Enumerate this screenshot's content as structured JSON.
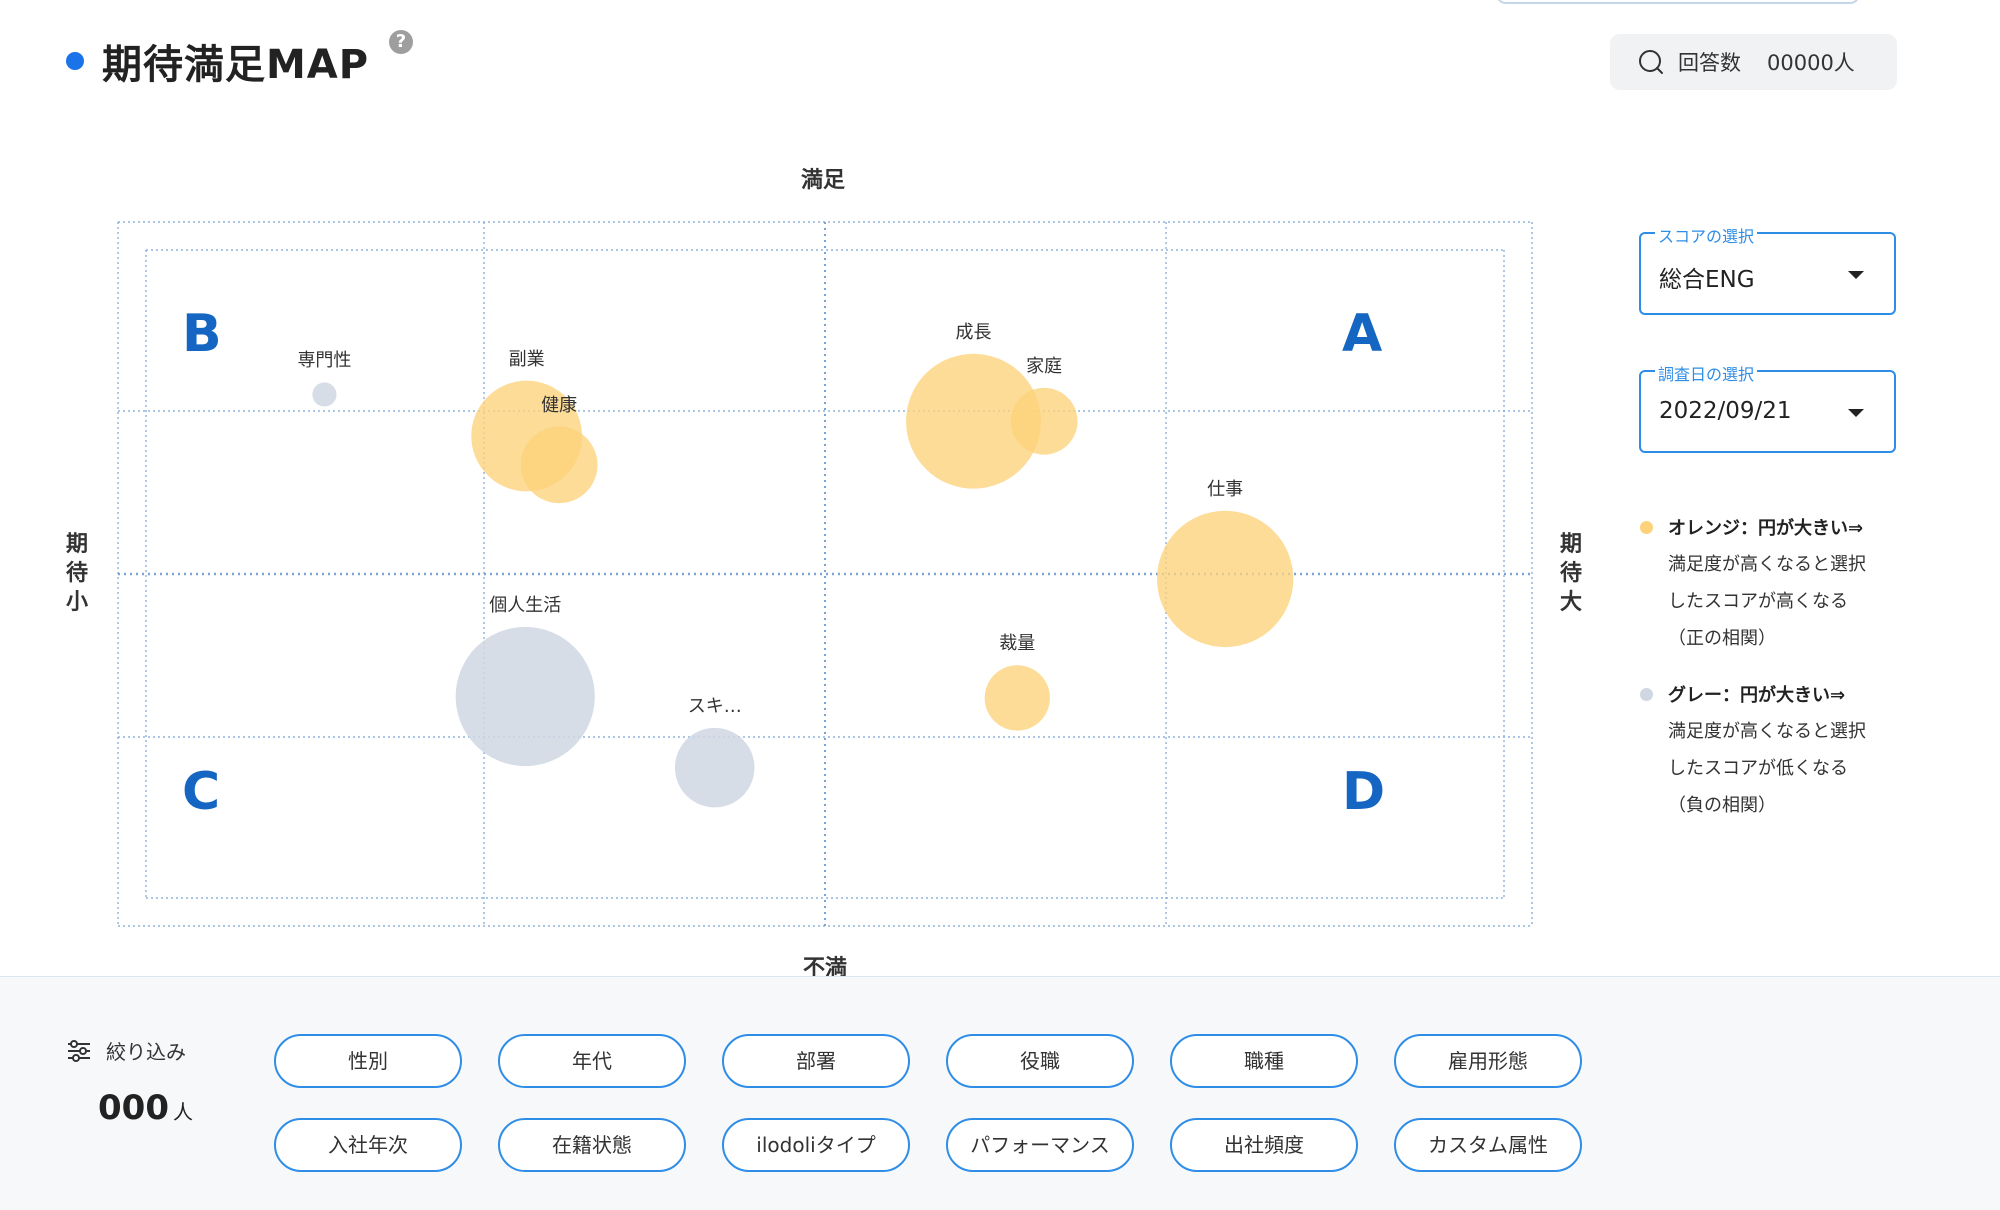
{
  "header": {
    "title": "期待満足MAP",
    "help_icon": "help-icon",
    "response_count_label": "回答数",
    "response_count_value": "00000人"
  },
  "chart_data": {
    "type": "bubble",
    "axis_labels": {
      "top": "満足",
      "bottom": "不満",
      "left": "期待小",
      "right": "期待大"
    },
    "quadrants": {
      "top_left": "B",
      "top_right": "A",
      "bottom_left": "C",
      "bottom_right": "D"
    },
    "xlim": [
      0,
      1
    ],
    "ylim": [
      0,
      1
    ],
    "grid": "dotted",
    "points": [
      {
        "label": "専門性",
        "x": 0.146,
        "y": 0.755,
        "size": 0.17,
        "color": "gray"
      },
      {
        "label": "副業",
        "x": 0.289,
        "y": 0.696,
        "size": 0.78,
        "color": "orange"
      },
      {
        "label": "健康",
        "x": 0.312,
        "y": 0.655,
        "size": 0.54,
        "color": "orange"
      },
      {
        "label": "成長",
        "x": 0.605,
        "y": 0.717,
        "size": 0.95,
        "color": "orange"
      },
      {
        "label": "家庭",
        "x": 0.655,
        "y": 0.717,
        "size": 0.47,
        "color": "orange"
      },
      {
        "label": "仕事",
        "x": 0.783,
        "y": 0.493,
        "size": 0.96,
        "color": "orange"
      },
      {
        "label": "個人生活",
        "x": 0.288,
        "y": 0.326,
        "size": 0.98,
        "color": "gray"
      },
      {
        "label": "スキ…",
        "x": 0.422,
        "y": 0.225,
        "size": 0.56,
        "color": "gray"
      },
      {
        "label": "裁量",
        "x": 0.636,
        "y": 0.324,
        "size": 0.46,
        "color": "orange"
      }
    ],
    "colors": {
      "orange": "#fdd27a",
      "gray": "#cfd7e2"
    }
  },
  "controls": {
    "score_select": {
      "legend": "スコアの選択",
      "value": "総合ENG"
    },
    "date_select": {
      "legend": "調査日の選択",
      "value": "2022/09/21"
    }
  },
  "legend": {
    "orange": {
      "head": "オレンジ：円が大きい⇒",
      "lines": [
        "満足度が高くなると選択",
        "したスコアが高くなる",
        "（正の相関）"
      ],
      "color": "#fdd27a"
    },
    "gray": {
      "head": "グレー：円が大きい⇒",
      "lines": [
        "満足度が高くなると選択",
        "したスコアが低くなる",
        "（負の相関）"
      ],
      "color": "#cfd7e2"
    }
  },
  "filter": {
    "label": "絞り込み",
    "count": "000",
    "count_unit": "人",
    "chips": [
      "性別",
      "年代",
      "部署",
      "役職",
      "職種",
      "雇用形態",
      "入社年次",
      "在籍状態",
      "ilodoliタイプ",
      "パフォーマンス",
      "出社頻度",
      "カスタム属性"
    ]
  }
}
